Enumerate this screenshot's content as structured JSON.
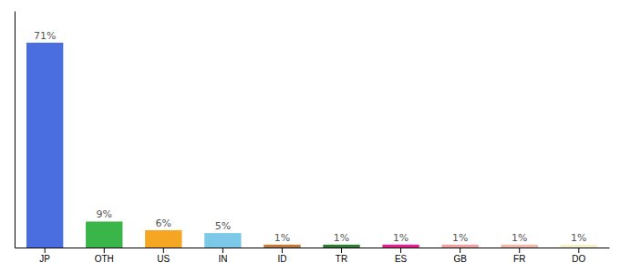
{
  "chart_data": {
    "type": "bar",
    "categories": [
      "JP",
      "OTH",
      "US",
      "IN",
      "ID",
      "TR",
      "ES",
      "GB",
      "FR",
      "DO"
    ],
    "values": [
      71,
      9,
      6,
      5,
      1,
      1,
      1,
      1,
      1,
      1
    ],
    "value_labels": [
      "71%",
      "9%",
      "6%",
      "5%",
      "1%",
      "1%",
      "1%",
      "1%",
      "1%",
      "1%"
    ],
    "colors": [
      "#4a6ee0",
      "#3ab54a",
      "#f5a623",
      "#7bc8e8",
      "#c27a3a",
      "#2e7d32",
      "#e91e8c",
      "#f4a0a0",
      "#f4b8a8",
      "#f5f0c8"
    ],
    "ylim": [
      0,
      82
    ],
    "data_labels": true,
    "tick_labels": "x"
  }
}
